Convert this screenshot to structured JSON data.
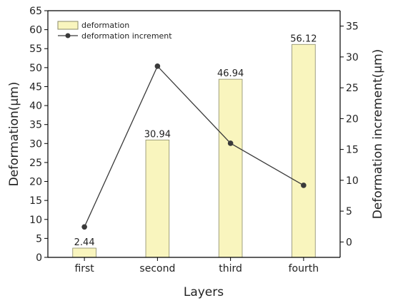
{
  "chart_data": {
    "type": "bar",
    "categories": [
      "first",
      "second",
      "third",
      "fourth"
    ],
    "xlabel": "Layers",
    "ylabel": "Deformation(μm)",
    "y2label": "Deformation increment(μm)",
    "ylim": [
      0,
      65
    ],
    "y2lim": [
      -2.5,
      37.5
    ],
    "yticks": [
      0,
      5,
      10,
      15,
      20,
      25,
      30,
      35,
      40,
      45,
      50,
      55,
      60,
      65
    ],
    "y2ticks": [
      0,
      5,
      10,
      15,
      20,
      25,
      30,
      35
    ],
    "grid": false,
    "legend_position": "top-left",
    "series": [
      {
        "name": "deformation",
        "type": "bar",
        "axis": "left",
        "values": [
          2.44,
          30.94,
          46.94,
          56.12
        ],
        "data_labels": [
          "2.44",
          "30.94",
          "46.94",
          "56.12"
        ],
        "color": "#f9f5be",
        "edge_color": "#8a8a6a"
      },
      {
        "name": "deformation increment",
        "type": "line",
        "axis": "right",
        "values": [
          2.44,
          28.5,
          16.0,
          9.18
        ],
        "color": "#3a3a3a"
      }
    ]
  }
}
